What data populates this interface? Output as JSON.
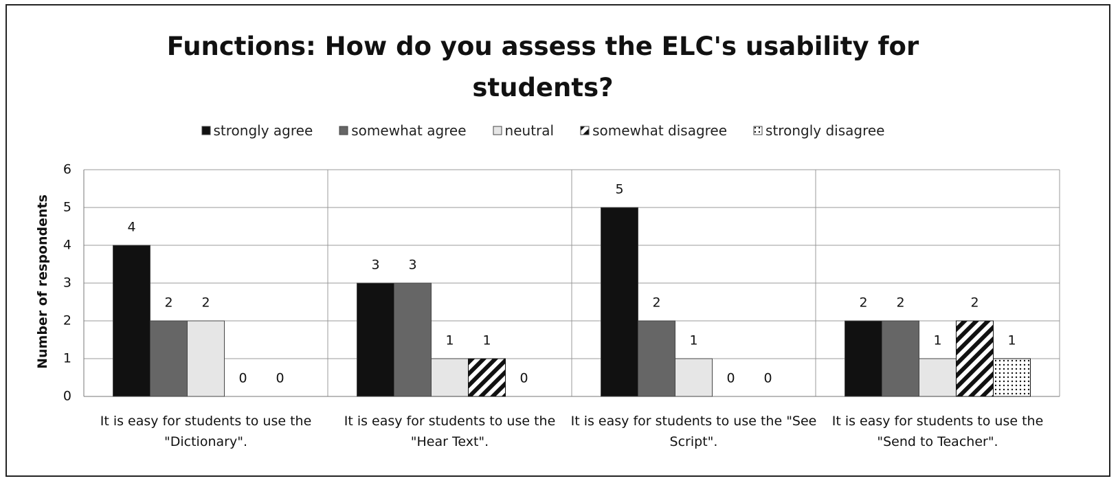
{
  "chart_data": {
    "type": "bar",
    "title": "Functions: How do you assess the ELC's usability for students?",
    "y_label": "Number of respondents",
    "categories": [
      "It is easy for students to use the \"Dictionary\".",
      "It is easy for students to use the \"Hear Text\".",
      "It is easy for students to use the \"See Script\".",
      "It is easy for students to use the \"Send to Teacher\"."
    ],
    "series": [
      {
        "name": "strongly agree",
        "color": "#111111",
        "values": [
          4,
          3,
          5,
          2
        ]
      },
      {
        "name": "somewhat agree",
        "color": "#666666",
        "values": [
          2,
          3,
          2,
          2
        ]
      },
      {
        "name": "neutral",
        "color": "#e6e6e6",
        "values": [
          2,
          1,
          1,
          1
        ]
      },
      {
        "name": "somewhat disagree",
        "color": "#111111",
        "pattern": "hatch",
        "values": [
          0,
          1,
          0,
          2
        ]
      },
      {
        "name": "strongly disagree",
        "color": "#111111",
        "pattern": "dots",
        "values": [
          0,
          0,
          0,
          1
        ]
      }
    ],
    "ylim": [
      0,
      6
    ],
    "yticks": [
      0,
      1,
      2,
      3,
      4,
      5,
      6
    ],
    "grid": true,
    "legend": "top"
  }
}
